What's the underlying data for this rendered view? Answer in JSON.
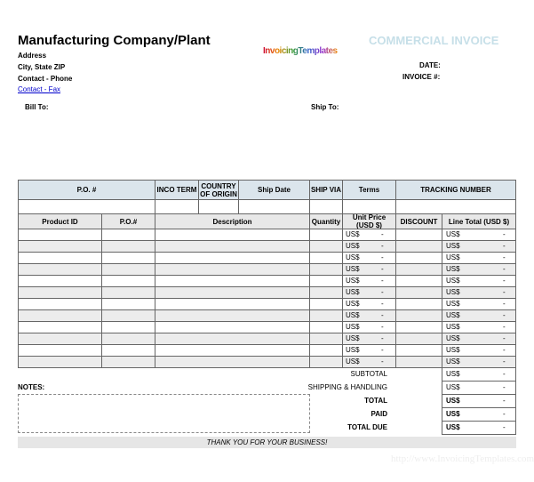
{
  "header": {
    "company": "Manufacturing Company/Plant",
    "address": "Address",
    "city": "City, State ZIP",
    "phone": "Contact - Phone",
    "fax": "Contact - Fax",
    "logo": "InvoicingTemplates",
    "title": "COMMERCIAL INVOICE",
    "date_label": "DATE:",
    "invoice_label": "INVOICE #:"
  },
  "parties": {
    "bill_to": "Bill To:",
    "ship_to": "Ship To:"
  },
  "order_table": {
    "columns": [
      "P.O. #",
      "INCO TERM",
      "COUNTRY OF ORIGIN",
      "Ship Date",
      "SHIP VIA",
      "Terms",
      "TRACKING NUMBER"
    ]
  },
  "items_table": {
    "columns": [
      "Product ID",
      "P.O.#",
      "Description",
      "Quantity",
      "Unit Price (USD $)",
      "DISCOUNT",
      "Line Total (USD $)"
    ],
    "rows": [
      [
        "US$",
        "-",
        "US$",
        "-"
      ],
      [
        "US$",
        "-",
        "US$",
        "-"
      ],
      [
        "US$",
        "-",
        "US$",
        "-"
      ],
      [
        "US$",
        "-",
        "US$",
        "-"
      ],
      [
        "US$",
        "-",
        "US$",
        "-"
      ],
      [
        "US$",
        "-",
        "US$",
        "-"
      ],
      [
        "US$",
        "-",
        "US$",
        "-"
      ],
      [
        "US$",
        "-",
        "US$",
        "-"
      ],
      [
        "US$",
        "-",
        "US$",
        "-"
      ],
      [
        "US$",
        "-",
        "US$",
        "-"
      ],
      [
        "US$",
        "-",
        "US$",
        "-"
      ],
      [
        "US$",
        "-",
        "US$",
        "-"
      ]
    ]
  },
  "totals": [
    {
      "label": "SUBTOTAL",
      "currency": "US$",
      "amount": "-"
    },
    {
      "label": "SHIPPING & HANDLING",
      "currency": "US$",
      "amount": "-"
    },
    {
      "label": "TOTAL",
      "currency": "US$",
      "amount": "-"
    },
    {
      "label": "PAID",
      "currency": "US$",
      "amount": "-"
    },
    {
      "label": "TOTAL DUE",
      "currency": "US$",
      "amount": "-"
    }
  ],
  "notes_label": "NOTES:",
  "footer": "THANK YOU FOR YOUR BUSINESS!",
  "watermark": "http://www.InvoicingTemplates.com"
}
